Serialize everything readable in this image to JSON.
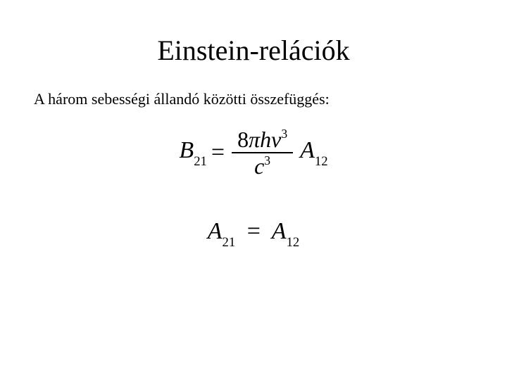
{
  "title": "Einstein-relációk",
  "subtitle": "A három sebességi állandó közötti összefüggés:",
  "typography": {
    "title_fontsize": 40,
    "subtitle_fontsize": 22,
    "equation_fontsize": 34,
    "font_family": "Times New Roman",
    "text_color": "#000000",
    "background_color": "#ffffff"
  },
  "equations": [
    {
      "latex": "B_{21} = \\dfrac{8\\pi h \\nu^{3}}{c^{3}} A_{12}",
      "lhs_symbol": "B",
      "lhs_sub": "21",
      "eq": "=",
      "frac_num_coeff": "8",
      "frac_num_pi": "π",
      "frac_num_h": "h",
      "frac_num_nu": "ν",
      "frac_num_nu_sup": "3",
      "frac_den_c": "c",
      "frac_den_c_sup": "3",
      "rhs_symbol": "A",
      "rhs_sub": "12"
    },
    {
      "latex": "A_{21} = A_{12}",
      "lhs_symbol": "A",
      "lhs_sub": "21",
      "eq": "=",
      "rhs_symbol": "A",
      "rhs_sub": "12"
    }
  ]
}
